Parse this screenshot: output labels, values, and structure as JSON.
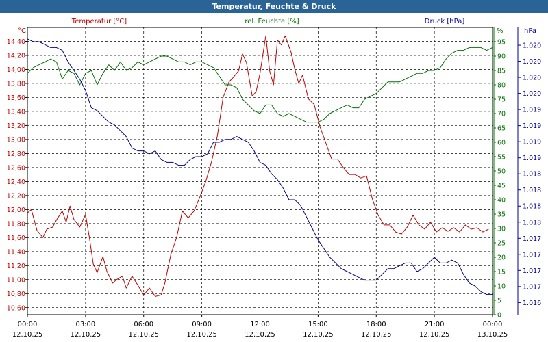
{
  "window": {
    "title": "Temperatur, Feuchte & Druck"
  },
  "colors": {
    "temperature": "#c00000",
    "humidity": "#007000",
    "pressure": "#00009a",
    "titlebar": "#2a6496"
  },
  "chart_data": {
    "type": "line",
    "title": "Temperatur, Feuchte & Druck",
    "xlabel": "",
    "x_ticks": [
      {
        "time": "00:00",
        "date": "12.10.25"
      },
      {
        "time": "03:00",
        "date": "12.10.25"
      },
      {
        "time": "06:00",
        "date": "12.10.25"
      },
      {
        "time": "09:00",
        "date": "12.10.25"
      },
      {
        "time": "12:00",
        "date": "12.10.25"
      },
      {
        "time": "15:00",
        "date": "12.10.25"
      },
      {
        "time": "18:00",
        "date": "12.10.25"
      },
      {
        "time": "21:00",
        "date": "12.10.25"
      },
      {
        "time": "00:00",
        "date": "13.10.25"
      }
    ],
    "xlim_hours": [
      0,
      24
    ],
    "axes": {
      "temperature": {
        "unit_label": "°C",
        "legend": "Temperatur [°C]",
        "ylim": [
          10.5,
          14.6
        ],
        "ticks": [
          "10,60",
          "10,80",
          "11,00",
          "11,20",
          "11,40",
          "11,60",
          "11,80",
          "12,00",
          "12,20",
          "12,40",
          "12,60",
          "12,80",
          "13,00",
          "13,20",
          "13,40",
          "13,60",
          "13,80",
          "14,00",
          "14,20",
          "14,40"
        ],
        "tick_values": [
          10.6,
          10.8,
          11.0,
          11.2,
          11.4,
          11.6,
          11.8,
          12.0,
          12.2,
          12.4,
          12.6,
          12.8,
          13.0,
          13.2,
          13.4,
          13.6,
          13.8,
          14.0,
          14.2,
          14.4
        ]
      },
      "humidity": {
        "unit_label": "%",
        "legend": "rel. Feuchte [%]",
        "ylim": [
          0,
          100
        ],
        "ticks": [
          "0",
          "5",
          "10",
          "15",
          "20",
          "25",
          "30",
          "35",
          "40",
          "45",
          "50",
          "55",
          "60",
          "65",
          "70",
          "75",
          "80",
          "85",
          "90",
          "95"
        ],
        "tick_values": [
          0,
          5,
          10,
          15,
          20,
          25,
          30,
          35,
          40,
          45,
          50,
          55,
          60,
          65,
          70,
          75,
          80,
          85,
          90,
          95
        ]
      },
      "pressure": {
        "unit_label": "hPa",
        "legend": "Druck [hPa]",
        "ylim": [
          0,
          100
        ],
        "ticks": [
          "1.016",
          "1.017",
          "1.017",
          "1.017",
          "1.017",
          "1.018",
          "1.018",
          "1.018",
          "1.018",
          "1.019",
          "1.019",
          "1.019",
          "1.019",
          "1.020",
          "1.020",
          "1.020",
          "1.020"
        ],
        "tick_values": [
          4.2,
          9.8,
          15.4,
          21.0,
          26.6,
          32.2,
          37.8,
          43.4,
          49.0,
          54.6,
          60.2,
          65.8,
          71.4,
          77.0,
          82.6,
          88.2,
          93.8
        ]
      }
    },
    "series": [
      {
        "name": "Temperatur [°C]",
        "axis": "temperature",
        "x": [
          0.0,
          0.2,
          0.5,
          0.8,
          1.0,
          1.3,
          1.5,
          1.8,
          2.0,
          2.2,
          2.4,
          2.7,
          3.0,
          3.2,
          3.4,
          3.6,
          3.9,
          4.1,
          4.4,
          4.6,
          4.9,
          5.1,
          5.4,
          5.7,
          6.0,
          6.3,
          6.6,
          6.9,
          7.1,
          7.4,
          7.7,
          8.0,
          8.3,
          8.6,
          8.9,
          9.2,
          9.5,
          9.8,
          10.1,
          10.4,
          10.6,
          10.9,
          11.1,
          11.3,
          11.6,
          11.8,
          12.0,
          12.3,
          12.5,
          12.7,
          12.9,
          13.1,
          13.3,
          13.6,
          13.8,
          14.0,
          14.2,
          14.5,
          14.8,
          15.1,
          15.4,
          15.7,
          16.0,
          16.3,
          16.6,
          16.9,
          17.2,
          17.5,
          17.8,
          18.1,
          18.4,
          18.7,
          19.0,
          19.3,
          19.6,
          19.9,
          20.2,
          20.5,
          20.8,
          21.1,
          21.4,
          21.7,
          22.0,
          22.3,
          22.6,
          22.9,
          23.2,
          23.5,
          23.8
        ],
        "values": [
          11.95,
          12.0,
          11.7,
          11.6,
          11.72,
          11.75,
          11.85,
          11.98,
          11.82,
          12.05,
          11.86,
          11.75,
          11.93,
          11.6,
          11.22,
          11.1,
          11.33,
          11.12,
          10.95,
          11.0,
          11.05,
          10.88,
          11.05,
          10.92,
          10.78,
          10.88,
          10.76,
          10.78,
          10.96,
          11.36,
          11.6,
          11.98,
          11.88,
          11.98,
          12.18,
          12.4,
          12.68,
          13.05,
          13.6,
          13.82,
          13.88,
          13.98,
          14.22,
          14.1,
          13.62,
          13.68,
          13.94,
          14.48,
          13.98,
          13.78,
          14.42,
          14.35,
          14.48,
          14.25,
          14.0,
          13.8,
          13.92,
          13.58,
          13.5,
          13.18,
          12.95,
          12.72,
          12.72,
          12.6,
          12.5,
          12.5,
          12.45,
          12.48,
          12.15,
          11.92,
          11.78,
          11.78,
          11.68,
          11.65,
          11.75,
          11.92,
          11.78,
          11.72,
          11.82,
          11.68,
          11.74,
          11.69,
          11.74,
          11.68,
          11.78,
          11.72,
          11.74,
          11.68,
          11.72
        ]
      },
      {
        "name": "rel. Feuchte [%]",
        "axis": "humidity",
        "x": [
          0.0,
          0.3,
          0.6,
          0.9,
          1.2,
          1.5,
          1.8,
          2.1,
          2.4,
          2.7,
          3.0,
          3.3,
          3.6,
          3.9,
          4.2,
          4.5,
          4.8,
          5.1,
          5.4,
          5.7,
          6.0,
          6.3,
          6.6,
          6.9,
          7.2,
          7.5,
          7.8,
          8.1,
          8.4,
          8.7,
          9.0,
          9.3,
          9.6,
          9.9,
          10.2,
          10.5,
          10.8,
          11.1,
          11.4,
          11.7,
          12.0,
          12.3,
          12.6,
          12.9,
          13.2,
          13.5,
          13.8,
          14.1,
          14.4,
          14.7,
          15.0,
          15.3,
          15.6,
          15.9,
          16.2,
          16.5,
          16.8,
          17.1,
          17.4,
          17.7,
          18.0,
          18.3,
          18.6,
          18.9,
          19.2,
          19.5,
          19.8,
          20.1,
          20.4,
          20.7,
          21.0,
          21.3,
          21.6,
          21.9,
          22.2,
          22.5,
          22.8,
          23.1,
          23.4,
          23.7,
          24.0
        ],
        "values": [
          84,
          86,
          87,
          88,
          89,
          88,
          82,
          85,
          84,
          80,
          84,
          85,
          80,
          84,
          87,
          85,
          88,
          85,
          86,
          88,
          87,
          88,
          89,
          90,
          90,
          89,
          88,
          88,
          87,
          88,
          88,
          87,
          86,
          83,
          80,
          80,
          79,
          75,
          73,
          71,
          70,
          73,
          73,
          70,
          69,
          70,
          69,
          68,
          67,
          67,
          67,
          68,
          70,
          71,
          72,
          73,
          72,
          72,
          75,
          76,
          77,
          79,
          81,
          81,
          81,
          82,
          83,
          84,
          84,
          85,
          85,
          86,
          89,
          91,
          92,
          92,
          93,
          93,
          93,
          92,
          93
        ]
      },
      {
        "name": "Druck [hPa]",
        "axis": "pressure",
        "x": [
          0.0,
          0.3,
          0.6,
          0.9,
          1.2,
          1.5,
          1.8,
          2.1,
          2.4,
          2.7,
          3.0,
          3.3,
          3.6,
          3.9,
          4.2,
          4.5,
          4.8,
          5.1,
          5.4,
          5.7,
          6.0,
          6.3,
          6.6,
          6.9,
          7.2,
          7.5,
          7.8,
          8.1,
          8.4,
          8.7,
          9.0,
          9.3,
          9.6,
          9.9,
          10.2,
          10.5,
          10.8,
          11.1,
          11.4,
          11.7,
          12.0,
          12.3,
          12.6,
          12.9,
          13.2,
          13.5,
          13.8,
          14.1,
          14.4,
          14.7,
          15.0,
          15.3,
          15.6,
          15.9,
          16.2,
          16.5,
          16.8,
          17.1,
          17.4,
          17.7,
          18.0,
          18.3,
          18.6,
          18.9,
          19.2,
          19.5,
          19.8,
          20.1,
          20.4,
          20.7,
          21.0,
          21.3,
          21.6,
          21.9,
          22.2,
          22.5,
          22.8,
          23.1,
          23.4,
          23.7,
          24.0
        ],
        "values": [
          96,
          95,
          95,
          94,
          93,
          93,
          92,
          88,
          85,
          82,
          78,
          72,
          71,
          69,
          67,
          66,
          64,
          62,
          58,
          57,
          57,
          56,
          57,
          54,
          53,
          53,
          52,
          52,
          54,
          55,
          55,
          56,
          60,
          60,
          61,
          61,
          62,
          61,
          60,
          57,
          53,
          52,
          49,
          47,
          44,
          40,
          40,
          38,
          34,
          30,
          26,
          23,
          20,
          18,
          16,
          15,
          14,
          13,
          12,
          12,
          12,
          14,
          16,
          16,
          17,
          18,
          18,
          15,
          16,
          18,
          20,
          18,
          18,
          19,
          18,
          14,
          11,
          10,
          8,
          7,
          7
        ]
      }
    ]
  }
}
